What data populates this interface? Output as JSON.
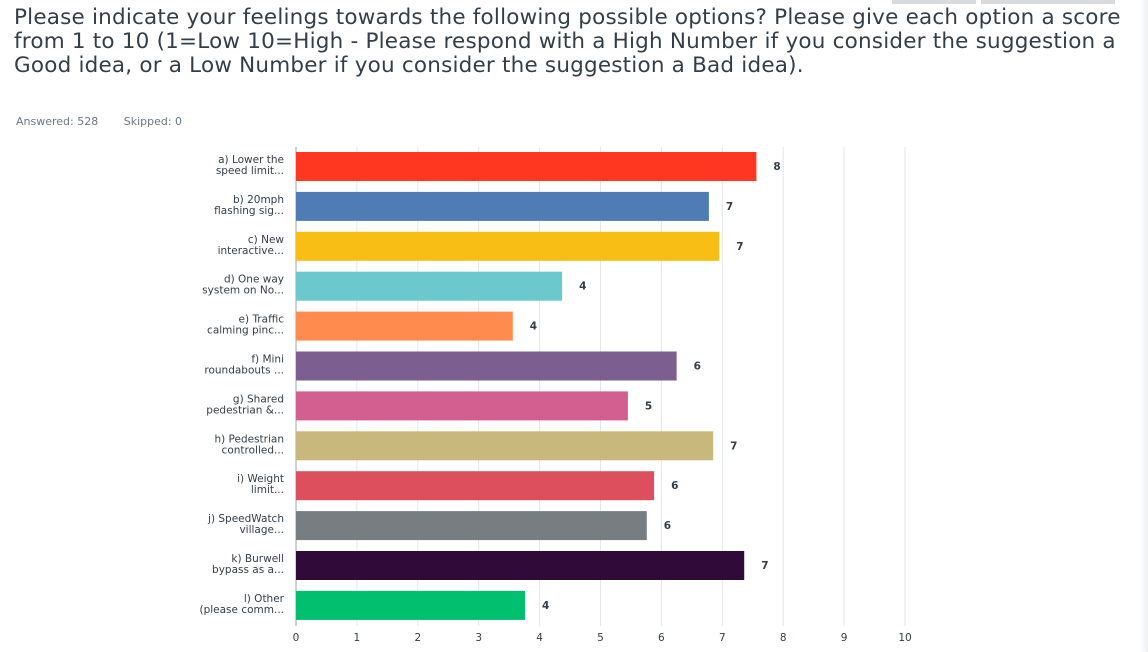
{
  "question": {
    "text": "Please indicate your feelings towards the following possible options? Please give each option a score from 1 to 10 (1=Low 10=High - Please respond with a High Number if you consider the suggestion a Good idea, or a Low Number if you consider the suggestion a Bad idea)."
  },
  "stats": {
    "answered": "Answered: 528",
    "skipped": "Skipped: 0"
  },
  "chart_data": {
    "type": "bar",
    "orientation": "horizontal",
    "categories": [
      [
        "a) Lower the",
        "speed limit..."
      ],
      [
        "b) 20mph",
        "flashing sig..."
      ],
      [
        "c) New",
        "interactive..."
      ],
      [
        "d) One way",
        "system on No..."
      ],
      [
        "e) Traffic",
        "calming pinc..."
      ],
      [
        "f) Mini",
        "roundabouts ..."
      ],
      [
        "g) Shared",
        "pedestrian &..."
      ],
      [
        "h) Pedestrian",
        "controlled..."
      ],
      [
        "i) Weight",
        "limit..."
      ],
      [
        "j) SpeedWatch",
        "village..."
      ],
      [
        "k) Burwell",
        "bypass as a..."
      ],
      [
        "l) Other",
        "(please comm..."
      ]
    ],
    "values": [
      7.56,
      6.78,
      6.95,
      4.37,
      3.56,
      6.25,
      5.45,
      6.85,
      5.88,
      5.76,
      7.36,
      3.76
    ],
    "data_labels": [
      "8",
      "7",
      "7",
      "4",
      "4",
      "6",
      "5",
      "7",
      "6",
      "6",
      "7",
      "4"
    ],
    "colors": [
      "#ff3621",
      "#507cb6",
      "#f9be15",
      "#6bc8cd",
      "#ff8b4f",
      "#7d5e90",
      "#d25f90",
      "#c9b87c",
      "#dd4f5d",
      "#767e82",
      "#300a38",
      "#00bf6f"
    ],
    "xticks": [
      "0",
      "1",
      "2",
      "3",
      "4",
      "5",
      "6",
      "7",
      "8",
      "9",
      "10"
    ],
    "xlim": [
      0,
      10
    ],
    "grid": true
  }
}
